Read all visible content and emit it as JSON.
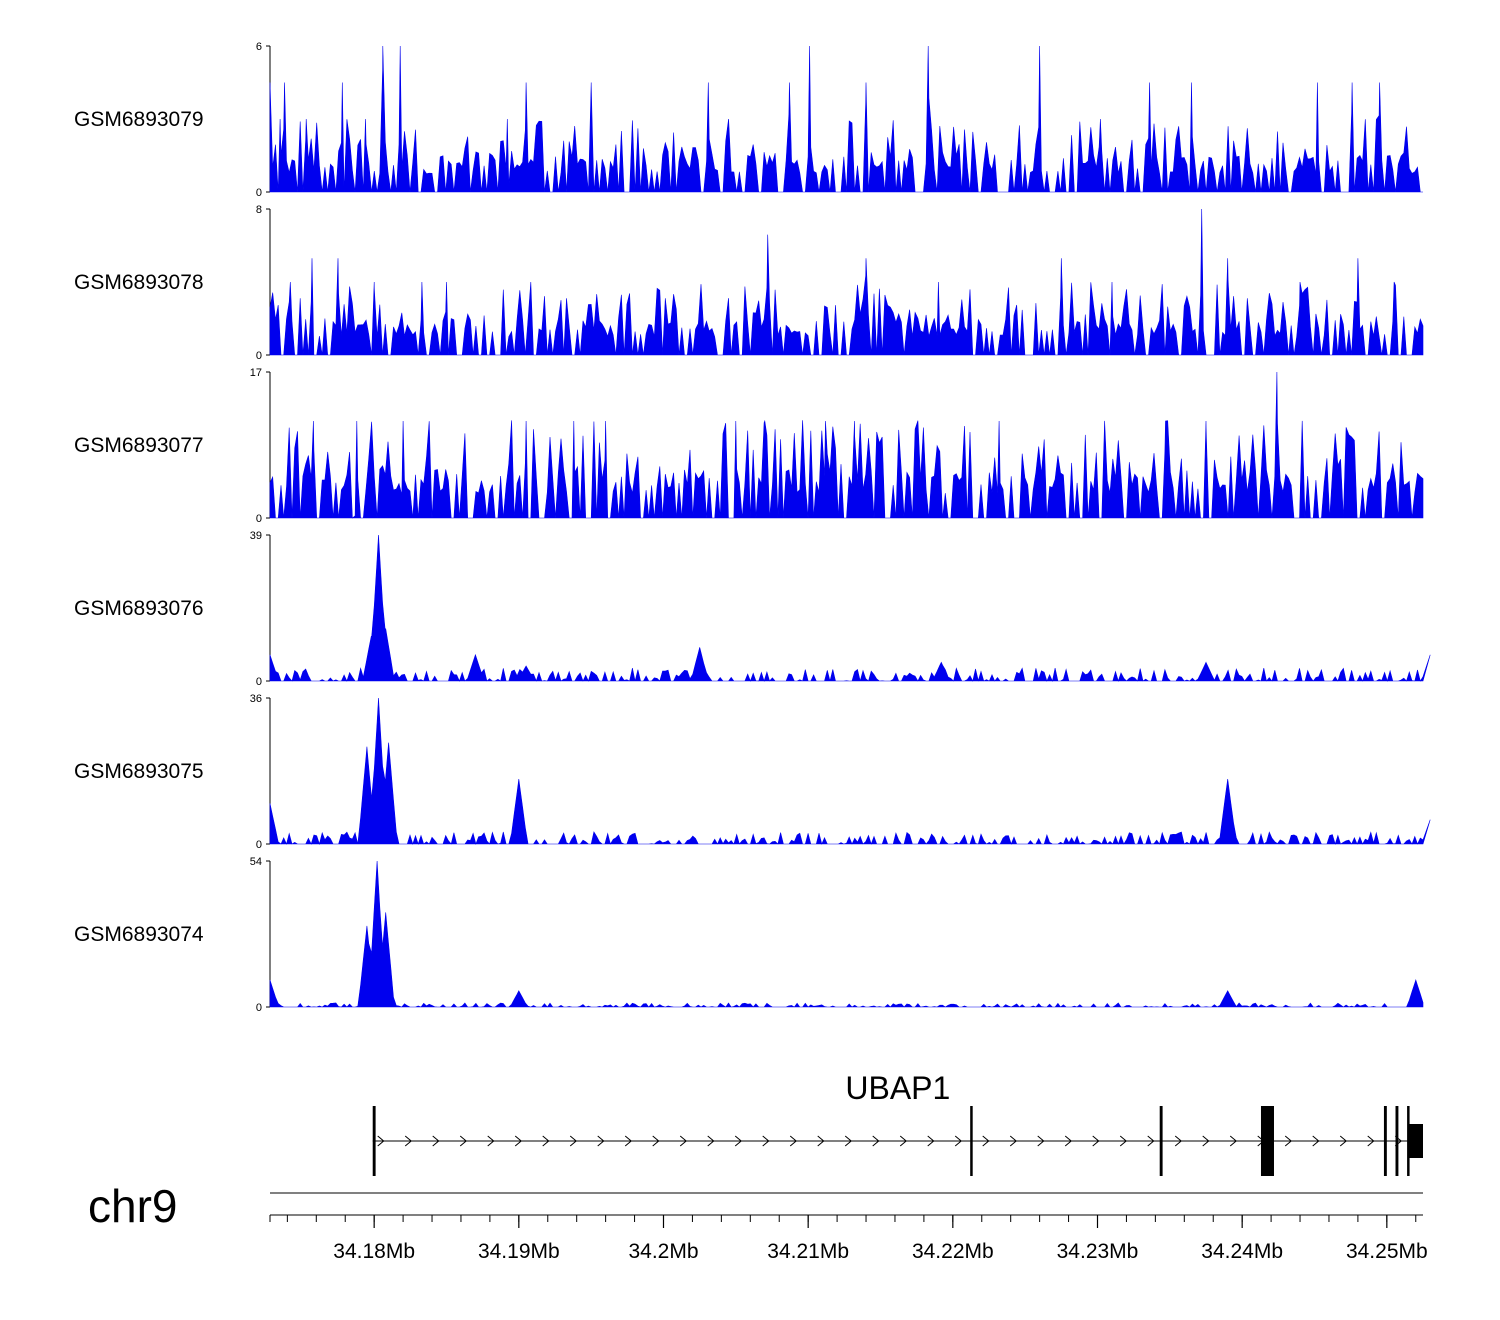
{
  "chart_data": {
    "type": "area",
    "title": "",
    "chromosome": "chr9",
    "xlim": [
      34.1728,
      34.2525
    ],
    "xunit": "Mb",
    "x_ticks": [
      34.18,
      34.19,
      34.2,
      34.21,
      34.22,
      34.23,
      34.24,
      34.25
    ],
    "x_tick_labels": [
      "34.18Mb",
      "34.19Mb",
      "34.2Mb",
      "34.21Mb",
      "34.22Mb",
      "34.23Mb",
      "34.24Mb",
      "34.25Mb"
    ],
    "minor_tick_step": 0.002,
    "fill_color": "#0000ee",
    "tracks": [
      {
        "name": "GSM6893079",
        "ymin": 0,
        "ymax": 6,
        "ymin_label": "0",
        "ymax_label": "6",
        "peaks": [
          [
            34.1728,
            4.5
          ],
          [
            34.1735,
            3.0
          ],
          [
            34.1738,
            4.5
          ],
          [
            34.1753,
            3.0
          ],
          [
            34.1778,
            4.5
          ],
          [
            34.1794,
            3.0
          ],
          [
            34.1806,
            6
          ],
          [
            34.1818,
            6
          ],
          [
            34.1892,
            3.0
          ],
          [
            34.1905,
            4.5
          ],
          [
            34.195,
            4.5
          ],
          [
            34.2031,
            4.5
          ],
          [
            34.2045,
            3.0
          ],
          [
            34.2087,
            4.5
          ],
          [
            34.2101,
            6
          ],
          [
            34.214,
            4.5
          ],
          [
            34.2183,
            6
          ],
          [
            34.226,
            6
          ],
          [
            34.2302,
            3.0
          ],
          [
            34.2336,
            4.5
          ],
          [
            34.2365,
            4.5
          ],
          [
            34.2452,
            4.5
          ],
          [
            34.2476,
            4.5
          ],
          [
            34.2495,
            4.5
          ]
        ],
        "base_level": 1.5
      },
      {
        "name": "GSM6893078",
        "ymin": 0,
        "ymax": 8,
        "ymin_label": "0",
        "ymax_label": "8",
        "peaks": [
          [
            34.1728,
            2.6
          ],
          [
            34.1742,
            4.0
          ],
          [
            34.1757,
            5.3
          ],
          [
            34.1775,
            5.3
          ],
          [
            34.18,
            4.0
          ],
          [
            34.1833,
            4.0
          ],
          [
            34.185,
            4.0
          ],
          [
            34.2072,
            6.6
          ],
          [
            34.214,
            5.3
          ],
          [
            34.219,
            4.0
          ],
          [
            34.2275,
            5.3
          ],
          [
            34.231,
            4.0
          ],
          [
            34.2372,
            8
          ],
          [
            34.239,
            5.3
          ],
          [
            34.244,
            4.0
          ],
          [
            34.248,
            5.3
          ],
          [
            34.2505,
            4.0
          ]
        ],
        "base_level": 2.0
      },
      {
        "name": "GSM6893077",
        "ymin": 0,
        "ymax": 17,
        "ymin_label": "0",
        "ymax_label": "17",
        "peaks": [
          [
            34.1758,
            11.3
          ],
          [
            34.1788,
            11.3
          ],
          [
            34.182,
            11.3
          ],
          [
            34.1905,
            11.3
          ],
          [
            34.1938,
            11.3
          ],
          [
            34.196,
            11.3
          ],
          [
            34.205,
            11.3
          ],
          [
            34.207,
            11.3
          ],
          [
            34.2112,
            11.3
          ],
          [
            34.2132,
            11.3
          ],
          [
            34.2232,
            11.3
          ],
          [
            34.2347,
            11.3
          ],
          [
            34.2375,
            11.3
          ],
          [
            34.2424,
            17
          ]
        ],
        "base_level": 5.7
      },
      {
        "name": "GSM6893076",
        "ymin": 0,
        "ymax": 39,
        "ymin_label": "0",
        "ymax_label": "39",
        "peaks": [
          [
            34.1728,
            7
          ],
          [
            34.1798,
            12
          ],
          [
            34.1803,
            39
          ],
          [
            34.1808,
            14
          ],
          [
            34.187,
            7
          ],
          [
            34.1905,
            4
          ],
          [
            34.2025,
            9
          ],
          [
            34.2192,
            5
          ],
          [
            34.2375,
            5
          ],
          [
            34.253,
            7
          ]
        ],
        "base_level": 3.5
      },
      {
        "name": "GSM6893075",
        "ymin": 0,
        "ymax": 36,
        "ymin_label": "0",
        "ymax_label": "36",
        "peaks": [
          [
            34.1728,
            10
          ],
          [
            34.1795,
            24
          ],
          [
            34.1803,
            36
          ],
          [
            34.181,
            25
          ],
          [
            34.19,
            16
          ],
          [
            34.239,
            16
          ],
          [
            34.253,
            6
          ]
        ],
        "base_level": 3.0
      },
      {
        "name": "GSM6893074",
        "ymin": 0,
        "ymax": 54,
        "ymin_label": "0",
        "ymax_label": "54",
        "peaks": [
          [
            34.1728,
            10
          ],
          [
            34.1795,
            30
          ],
          [
            34.1802,
            54
          ],
          [
            34.1808,
            35
          ],
          [
            34.19,
            6
          ],
          [
            34.239,
            6
          ],
          [
            34.252,
            10
          ]
        ],
        "base_level": 1.5
      }
    ],
    "gene": {
      "name": "UBAP1",
      "start": 34.1799,
      "end": 34.2525,
      "strand": "+",
      "exons": [
        [
          34.1799,
          34.1801
        ],
        [
          34.2212,
          34.2213
        ],
        [
          34.2343,
          34.2345
        ],
        [
          34.2413,
          34.2422
        ],
        [
          34.2498,
          34.25
        ],
        [
          34.2506,
          34.2508
        ],
        [
          34.2514,
          34.2515
        ],
        [
          34.2515,
          34.2525
        ]
      ]
    }
  }
}
